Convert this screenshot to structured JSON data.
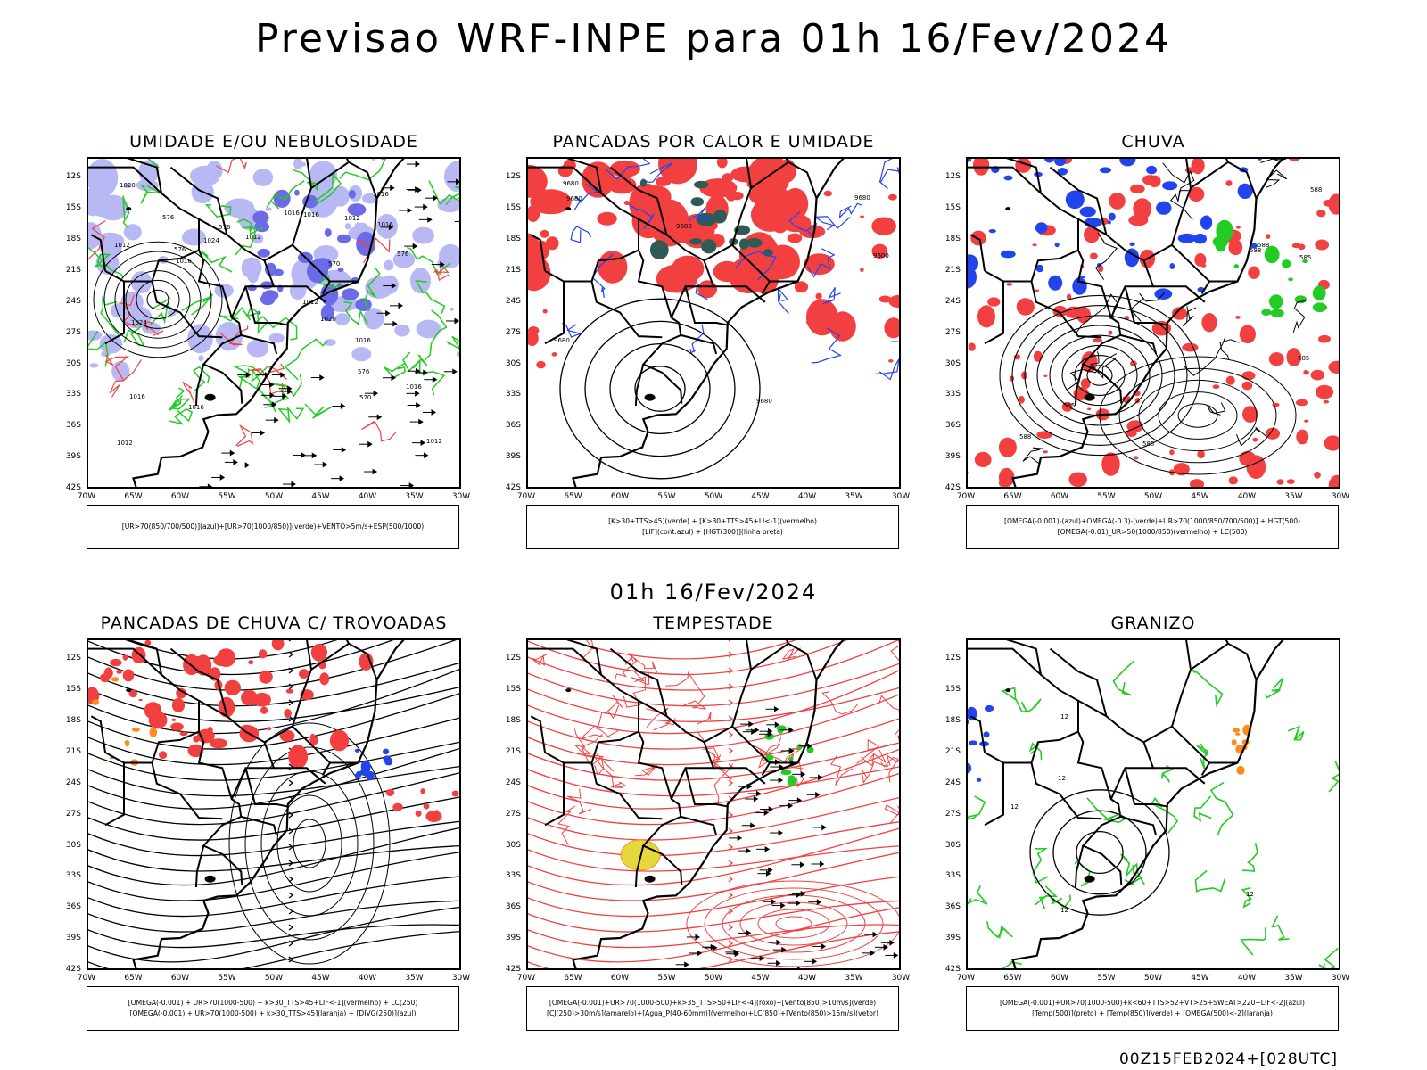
{
  "title": "Previsao WRF-INPE  para 01h 16/Fev/2024",
  "mid_title": "01h 16/Fev/2024",
  "footer": "00Z15FEB2024+[028UTC]",
  "axes": {
    "lat_labels": [
      "12S",
      "15S",
      "18S",
      "21S",
      "24S",
      "27S",
      "30S",
      "33S",
      "36S",
      "39S",
      "42S"
    ],
    "lon_labels": [
      "70W",
      "65W",
      "60W",
      "55W",
      "50W",
      "45W",
      "40W",
      "35W",
      "30W"
    ]
  },
  "colors": {
    "red": "#f24040",
    "green": "#22cc22",
    "blue": "#2244ee",
    "lavender": "#b8b8f4",
    "purple": "#6b6be8",
    "dark_teal": "#2f5a56",
    "yellow": "#e6d83a",
    "orange": "#ff8c1a",
    "black": "#000000"
  },
  "panels": [
    {
      "title": "UMIDADE E/OU NEBULOSIDADE",
      "legend": [
        "[UR>70(850/700/500)](azul)+[UR>70(1000/850)](verde)+VENTO>5m/s+ESP(500/1000)"
      ],
      "contour_labels": [
        "1012",
        "1016",
        "1024",
        "1012",
        "1016",
        "1016",
        "1016",
        "1012",
        "1016",
        "1016",
        "1016",
        "1012",
        "1016",
        "1020",
        "1020",
        "1024",
        "1012",
        "1016",
        "1012",
        "576",
        "576",
        "576",
        "576",
        "576",
        "570",
        "570"
      ]
    },
    {
      "title": "PANCADAS POR CALOR E UMIDADE",
      "legend": [
        "[K>30+TTS>45](verde) + [K>30+TTS>45+LI<-1](vermelho)",
        "[LIF](cont.azul) + [HGT(300)](linha preta)"
      ],
      "contour_labels": [
        "9680",
        "9680",
        "9680",
        "9680",
        "9600",
        "9680",
        "9680"
      ]
    },
    {
      "title": "CHUVA",
      "legend": [
        "[OMEGA(-0.001)-(azul)+OMEGA(-0.3)-(verde)+UR>70(1000/850/700/500)] + HGT(500)",
        "[OMEGA(-0.01)_UR>50(1000/850)(vermelho) + LC(500)"
      ],
      "contour_labels": [
        "588",
        "588",
        "585",
        "585",
        "588",
        "585",
        "585",
        "588"
      ]
    },
    {
      "title": "PANCADAS DE CHUVA C/ TROVOADAS",
      "legend": [
        "[OMEGA(-0.001) + UR>70(1000-500) + k>30_TTS>45+LIF<-1](vermelho) + LC(250)",
        "[OMEGA(-0.001) + UR>70(1000-500) + k>30_TTS>45](laranja) + [DIVG(250)](azul)"
      ],
      "contour_labels": []
    },
    {
      "title": "TEMPESTADE",
      "legend": [
        "[OMEGA(-0.001)+UR>70(1000-500)+k>35_TTS>50+LIF<-4](roxo)+[Vento(850)>10m/s](verde)",
        "[CJ(250)>30m/s](amarelo)+[Agua_P(40-60mm)](vermelho)+LC(850)+[Vento(850)>15m/s](vetor)"
      ],
      "contour_labels": []
    },
    {
      "title": "GRANIZO",
      "legend": [
        "[OMEGA(-0.001)+UR>70(1000-500)+k<60+TTS>52+VT>25+SWEAT>220+LIF<-2](azul)",
        "[Temp(500)](preto) + [Temp(850)](verde) + [OMEGA(500)<-2](laranja)"
      ],
      "contour_labels": [
        "12",
        "12",
        "12",
        "12",
        "12"
      ]
    }
  ]
}
